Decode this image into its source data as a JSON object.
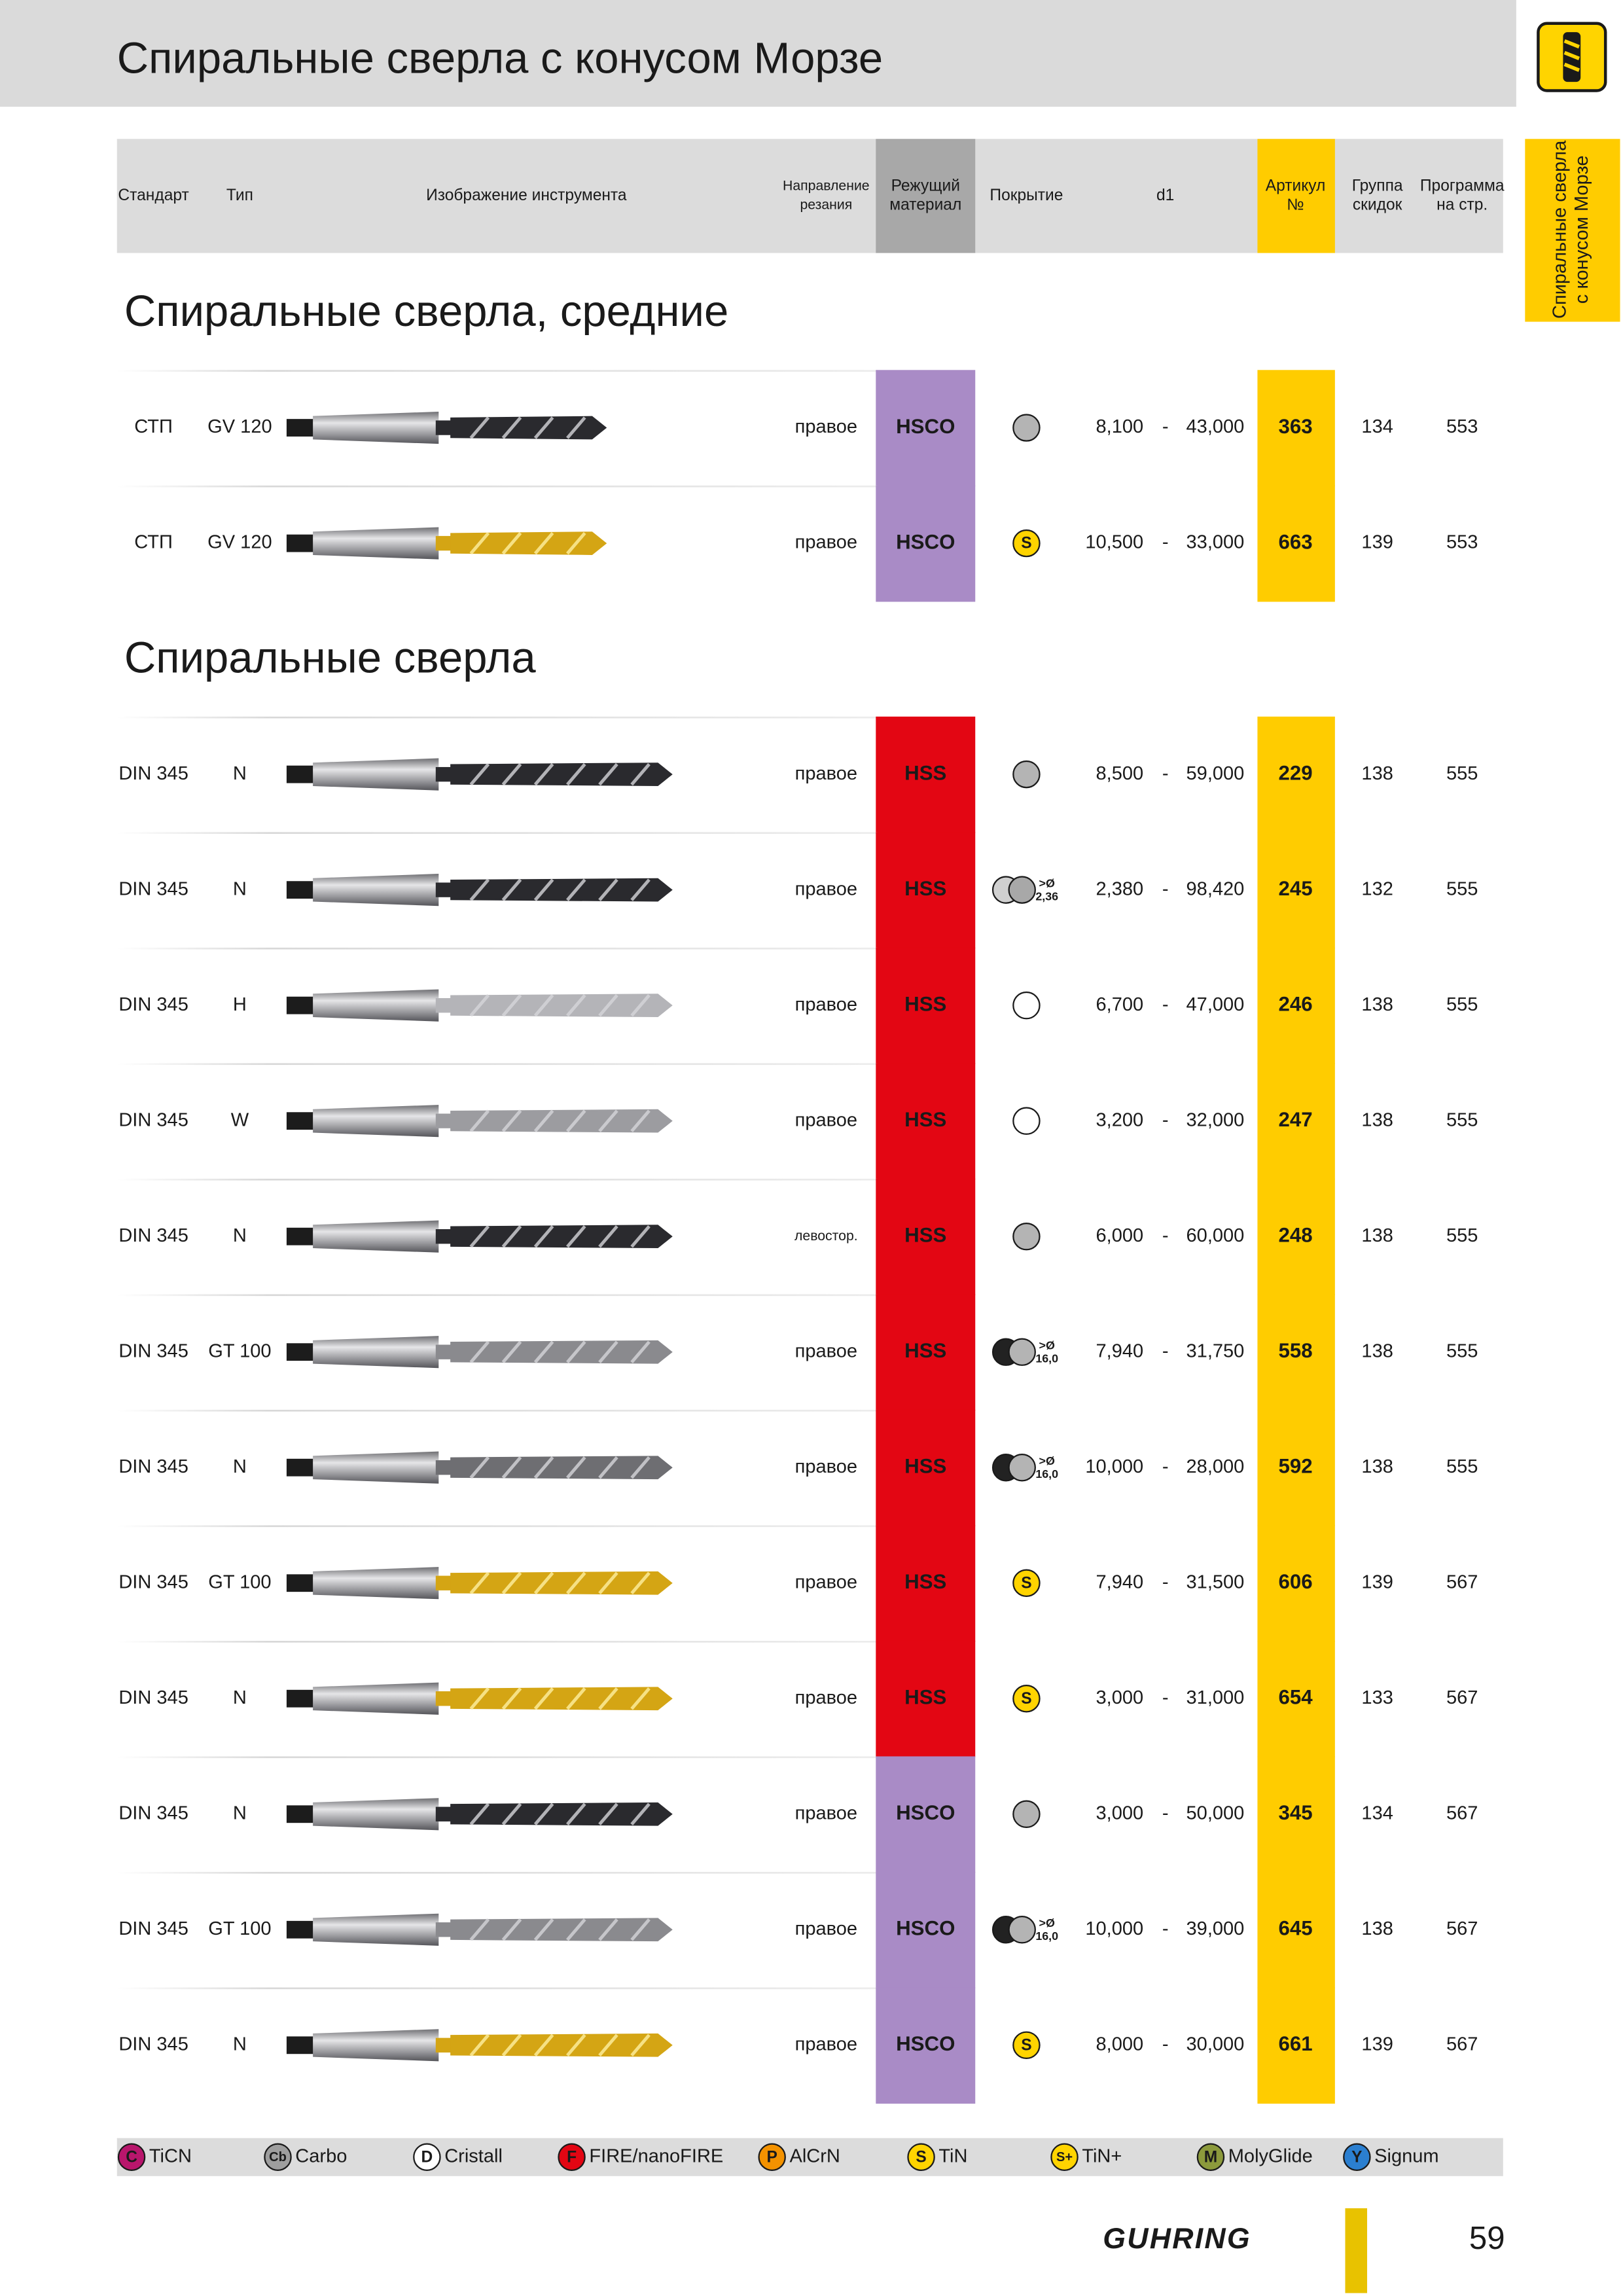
{
  "header": {
    "title": "Спиральные сверла с конусом Морзе"
  },
  "side_tab": {
    "lines": [
      "Спиральные сверла",
      "с конусом Морзе"
    ]
  },
  "columns": [
    {
      "lines": [
        "Стандарт"
      ]
    },
    {
      "lines": [
        "Тип"
      ]
    },
    {
      "lines": [
        "Изображение инструмента"
      ]
    },
    {
      "lines": [
        "Направление",
        "резания"
      ]
    },
    {
      "lines": [
        "Режущий",
        "материал"
      ]
    },
    {
      "lines": [
        "Покрытие"
      ]
    },
    {
      "lines": [
        "d1"
      ]
    },
    {
      "lines": [
        "Артикул",
        "№"
      ]
    },
    {
      "lines": [
        "Группа",
        "скидок"
      ]
    },
    {
      "lines": [
        "Программа",
        "на стр."
      ]
    }
  ],
  "range_separator": "-",
  "sections": [
    {
      "title": "Спиральные сверла, средние",
      "rows": [
        {
          "standard": "СТП",
          "type": "GV 120",
          "drill_color": "#2a2a2e",
          "direction": "правое",
          "material": "HSCO",
          "material_color": "#a98bc6",
          "coating": {
            "colors": [
              "#b4b4b4"
            ]
          },
          "d1_from": "8,100",
          "d1_to": "43,000",
          "article": "363",
          "group": "134",
          "page": "553"
        },
        {
          "standard": "СТП",
          "type": "GV 120",
          "drill_color": "#d4a514",
          "direction": "правое",
          "material": "HSCO",
          "material_color": "#a98bc6",
          "coating": {
            "label": "S",
            "colors": [
              "#ffd400"
            ]
          },
          "d1_from": "10,500",
          "d1_to": "33,000",
          "article": "663",
          "group": "139",
          "page": "553"
        }
      ]
    },
    {
      "title": "Спиральные сверла",
      "rows": [
        {
          "standard": "DIN 345",
          "type": "N",
          "drill_color": "#2a2a2e",
          "direction": "правое",
          "material": "HSS",
          "material_color": "#e30613",
          "coating": {
            "colors": [
              "#b4b4b4"
            ]
          },
          "d1_from": "8,500",
          "d1_to": "59,000",
          "article": "229",
          "group": "138",
          "page": "555"
        },
        {
          "standard": "DIN 345",
          "type": "N",
          "drill_color": "#2a2a2e",
          "direction": "правое",
          "material": "HSS",
          "material_color": "#e30613",
          "coating": {
            "colors": [
              "#d0d0d0",
              "#a8a8a8"
            ],
            "note": ">Ø",
            "size": "2,36"
          },
          "d1_from": "2,380",
          "d1_to": "98,420",
          "article": "245",
          "group": "132",
          "page": "555"
        },
        {
          "standard": "DIN 345",
          "type": "H",
          "drill_color": "#b4b4b8",
          "direction": "правое",
          "material": "HSS",
          "material_color": "#e30613",
          "coating": {
            "colors": [
              "#ffffff"
            ]
          },
          "d1_from": "6,700",
          "d1_to": "47,000",
          "article": "246",
          "group": "138",
          "page": "555"
        },
        {
          "standard": "DIN 345",
          "type": "W",
          "drill_color": "#9c9ca0",
          "direction": "правое",
          "material": "HSS",
          "material_color": "#e30613",
          "coating": {
            "colors": [
              "#ffffff"
            ]
          },
          "d1_from": "3,200",
          "d1_to": "32,000",
          "article": "247",
          "group": "138",
          "page": "555"
        },
        {
          "standard": "DIN 345",
          "type": "N",
          "drill_color": "#2a2a2e",
          "direction": "левостор.",
          "material": "HSS",
          "material_color": "#e30613",
          "coating": {
            "colors": [
              "#b4b4b4"
            ]
          },
          "d1_from": "6,000",
          "d1_to": "60,000",
          "article": "248",
          "group": "138",
          "page": "555"
        },
        {
          "standard": "DIN 345",
          "type": "GT 100",
          "drill_color": "#8a8a8e",
          "direction": "правое",
          "material": "HSS",
          "material_color": "#e30613",
          "coating": {
            "colors": [
              "#222222",
              "#b4b4b4"
            ],
            "note": ">Ø",
            "size": "16,0"
          },
          "d1_from": "7,940",
          "d1_to": "31,750",
          "article": "558",
          "group": "138",
          "page": "555"
        },
        {
          "standard": "DIN 345",
          "type": "N",
          "drill_color": "#6e6e72",
          "direction": "правое",
          "material": "HSS",
          "material_color": "#e30613",
          "coating": {
            "colors": [
              "#222222",
              "#b4b4b4"
            ],
            "note": ">Ø",
            "size": "16,0"
          },
          "d1_from": "10,000",
          "d1_to": "28,000",
          "article": "592",
          "group": "138",
          "page": "555"
        },
        {
          "standard": "DIN 345",
          "type": "GT 100",
          "drill_color": "#d4a514",
          "direction": "правое",
          "material": "HSS",
          "material_color": "#e30613",
          "coating": {
            "label": "S",
            "colors": [
              "#ffd400"
            ]
          },
          "d1_from": "7,940",
          "d1_to": "31,500",
          "article": "606",
          "group": "139",
          "page": "567"
        },
        {
          "standard": "DIN 345",
          "type": "N",
          "drill_color": "#d4a514",
          "direction": "правое",
          "material": "HSS",
          "material_color": "#e30613",
          "coating": {
            "label": "S",
            "colors": [
              "#ffd400"
            ]
          },
          "d1_from": "3,000",
          "d1_to": "31,000",
          "article": "654",
          "group": "133",
          "page": "567"
        },
        {
          "standard": "DIN 345",
          "type": "N",
          "drill_color": "#2a2a2e",
          "direction": "правое",
          "material": "HSCO",
          "material_color": "#a98bc6",
          "coating": {
            "colors": [
              "#b4b4b4"
            ]
          },
          "d1_from": "3,000",
          "d1_to": "50,000",
          "article": "345",
          "group": "134",
          "page": "567"
        },
        {
          "standard": "DIN 345",
          "type": "GT 100",
          "drill_color": "#8a8a8e",
          "direction": "правое",
          "material": "HSCO",
          "material_color": "#a98bc6",
          "coating": {
            "colors": [
              "#222222",
              "#b4b4b4"
            ],
            "note": ">Ø",
            "size": "16,0"
          },
          "d1_from": "10,000",
          "d1_to": "39,000",
          "article": "645",
          "group": "138",
          "page": "567"
        },
        {
          "standard": "DIN 345",
          "type": "N",
          "drill_color": "#d4a514",
          "direction": "правое",
          "material": "HSCO",
          "material_color": "#a98bc6",
          "coating": {
            "label": "S",
            "colors": [
              "#ffd400"
            ]
          },
          "d1_from": "8,000",
          "d1_to": "30,000",
          "article": "661",
          "group": "139",
          "page": "567"
        }
      ]
    }
  ],
  "legend": [
    {
      "code": "C",
      "name": "TiCN",
      "color": "#b8166c"
    },
    {
      "code": "Cb",
      "name": "Carbo",
      "color": "#9e9e9e"
    },
    {
      "code": "D",
      "name": "Cristall",
      "color": "#ffffff"
    },
    {
      "code": "F",
      "name": "FIRE/nanoFIRE",
      "color": "#e30613"
    },
    {
      "code": "P",
      "name": "AlCrN",
      "color": "#f39200"
    },
    {
      "code": "S",
      "name": "TiN",
      "color": "#ffd400"
    },
    {
      "code": "S+",
      "name": "TiN+",
      "color": "#ffd400"
    },
    {
      "code": "M",
      "name": "MolyGlide",
      "color": "#8c9a3c"
    },
    {
      "code": "Y",
      "name": "Signum",
      "color": "#2b7fd0"
    }
  ],
  "footer": {
    "brand": "GUHRING",
    "page_number": "59"
  }
}
